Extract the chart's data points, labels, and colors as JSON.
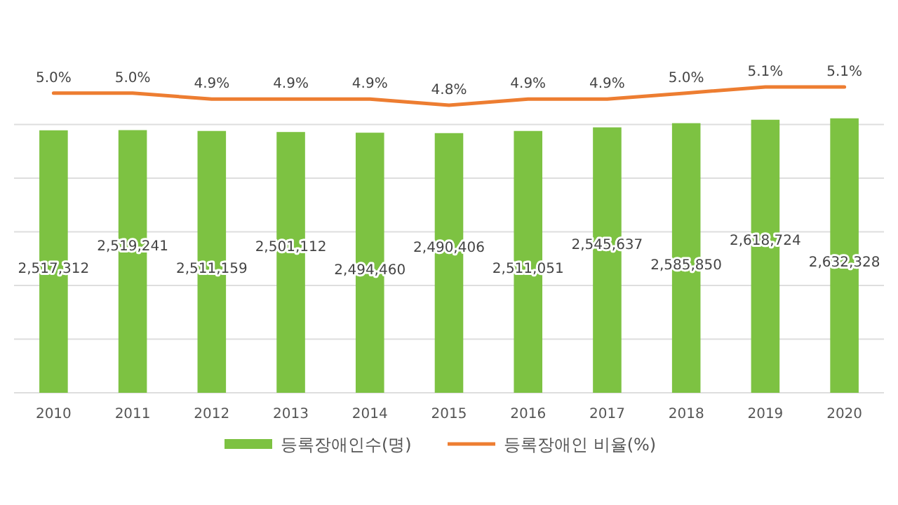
{
  "chart_data": [
    {
      "type": "bar",
      "categories": [
        "2010",
        "2011",
        "2012",
        "2013",
        "2014",
        "2015",
        "2016",
        "2017",
        "2018",
        "2019",
        "2020"
      ],
      "series": [
        {
          "name": "등록장애인수(명)",
          "color": "#7dc242",
          "values": [
            2517312,
            2519241,
            2511159,
            2501112,
            2494460,
            2490406,
            2511051,
            2545637,
            2585850,
            2618724,
            2632328
          ],
          "value_labels": [
            "2,517,312",
            "2,519,241",
            "2,511,159",
            "2,501,112",
            "2,494,460",
            "2,490,406",
            "2,511,051",
            "2,545,637",
            "2,585,850",
            "2,618,724",
            "2,632,328"
          ]
        }
      ],
      "tick_labels": "x",
      "grid": "y",
      "legend": "bottom"
    },
    {
      "type": "line",
      "categories": [
        null,
        null,
        null,
        null,
        null,
        null,
        null,
        null,
        null,
        null,
        null
      ],
      "series": [
        {
          "name": "등록장애인 비율(%)",
          "color": "#ed7d31",
          "values": [
            5.0,
            5.0,
            4.9,
            4.9,
            4.9,
            4.8,
            4.9,
            4.9,
            5.0,
            5.1,
            5.1
          ],
          "value_labels": [
            "5.0%",
            "5.0%",
            "4.9%",
            "4.9%",
            "4.9%",
            "4.8%",
            "4.9%",
            "4.9%",
            "5.0%",
            "5.1%",
            "5.1%"
          ]
        }
      ],
      "legend": "bottom"
    }
  ]
}
